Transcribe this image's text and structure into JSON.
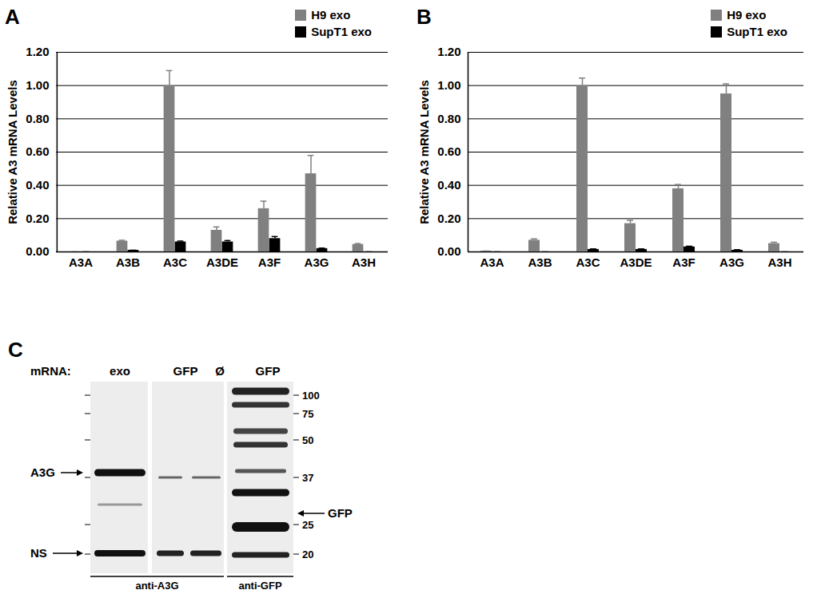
{
  "chart_data": [
    {
      "type": "bar",
      "title": "A",
      "y_label": "Relative A3 mRNA Levels",
      "categories": [
        "A3A",
        "A3B",
        "A3C",
        "A3DE",
        "A3F",
        "A3G",
        "A3H"
      ],
      "series": [
        {
          "name": "H9 exo",
          "color": "#808080",
          "values": [
            0,
            0.065,
            1.0,
            0.13,
            0.26,
            0.47,
            0.045
          ],
          "errors": [
            0,
            0.005,
            0.09,
            0.02,
            0.045,
            0.11,
            0.005
          ]
        },
        {
          "name": "SupT1 exo",
          "color": "#000000",
          "values": [
            0,
            0.01,
            0.06,
            0.06,
            0.08,
            0.02,
            0
          ],
          "errors": [
            0,
            0,
            0.005,
            0.008,
            0.012,
            0.003,
            0
          ]
        }
      ],
      "ylim": [
        0,
        1.2
      ],
      "yticks": [
        {
          "value": 0,
          "label": "0.00"
        },
        {
          "value": 0.2,
          "label": "0.20"
        },
        {
          "value": 0.4,
          "label": "0.40"
        },
        {
          "value": 0.6,
          "label": "0.60"
        },
        {
          "value": 0.8,
          "label": "0.80"
        },
        {
          "value": 1.0,
          "label": "1.00"
        },
        {
          "value": 1.2,
          "label": "1.20"
        }
      ],
      "grid": true,
      "legend": "top-right"
    },
    {
      "type": "bar",
      "title": "B",
      "y_label": "Relative A3 mRNA Levels",
      "categories": [
        "A3A",
        "A3B",
        "A3C",
        "A3DE",
        "A3F",
        "A3G",
        "A3H"
      ],
      "series": [
        {
          "name": "H9 exo",
          "color": "#808080",
          "values": [
            0.005,
            0.07,
            1.0,
            0.17,
            0.38,
            0.95,
            0.05
          ],
          "errors": [
            0,
            0.008,
            0.045,
            0.02,
            0.025,
            0.06,
            0.008
          ]
        },
        {
          "name": "SupT1 exo",
          "color": "#000000",
          "values": [
            0,
            0,
            0.015,
            0.015,
            0.03,
            0.01,
            0
          ],
          "errors": [
            0,
            0,
            0.003,
            0.003,
            0.004,
            0.003,
            0
          ]
        }
      ],
      "ylim": [
        0,
        1.2
      ],
      "yticks": [
        {
          "value": 0,
          "label": "0.00"
        },
        {
          "value": 0.2,
          "label": "0.20"
        },
        {
          "value": 0.4,
          "label": "0.40"
        },
        {
          "value": 0.6,
          "label": "0.60"
        },
        {
          "value": 0.8,
          "label": "0.80"
        },
        {
          "value": 1.0,
          "label": "1.00"
        },
        {
          "value": 1.2,
          "label": "1.20"
        }
      ],
      "grid": true,
      "legend": "top-right"
    }
  ],
  "blot": {
    "title": "C",
    "row_label": "mRNA:",
    "lanes": [
      "exo",
      "GFP",
      "Ø",
      "GFP"
    ],
    "left_bands": [
      "A3G",
      "NS"
    ],
    "right_band": "GFP",
    "mw_markers": [
      100,
      75,
      50,
      37,
      25,
      20
    ],
    "antibodies": [
      "anti-A3G",
      "anti-GFP"
    ]
  }
}
